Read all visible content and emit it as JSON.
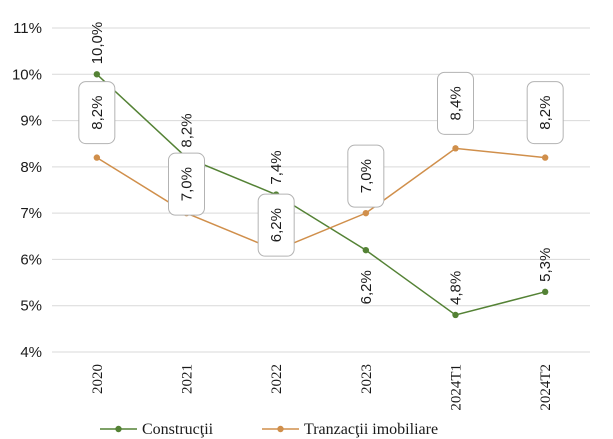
{
  "chart_data": {
    "type": "line",
    "title": "",
    "xlabel": "",
    "ylabel": "",
    "categories": [
      "2020",
      "2021",
      "2022",
      "2023",
      "2024T1",
      "2024T2"
    ],
    "ylim": [
      4,
      11
    ],
    "yticks": [
      "4%",
      "5%",
      "6%",
      "7%",
      "8%",
      "9%",
      "10%",
      "11%"
    ],
    "grid": true,
    "legend_position": "bottom",
    "series": [
      {
        "name": "Construcţii",
        "color": "#548235",
        "values": [
          10.0,
          8.2,
          7.4,
          6.2,
          4.8,
          5.3
        ],
        "labels": [
          "10,0%",
          "8,2%",
          "7,4%",
          "6,2%",
          "4,8%",
          "5,3%"
        ],
        "boxed": false
      },
      {
        "name": "Tranzacţii imobiliare",
        "color": "#D08F4B",
        "values": [
          8.2,
          7.0,
          6.2,
          7.0,
          8.4,
          8.2
        ],
        "labels": [
          "8,2%",
          "7,0%",
          "6,2%",
          "7,0%",
          "8,4%",
          "8,2%"
        ],
        "boxed": true
      }
    ]
  }
}
